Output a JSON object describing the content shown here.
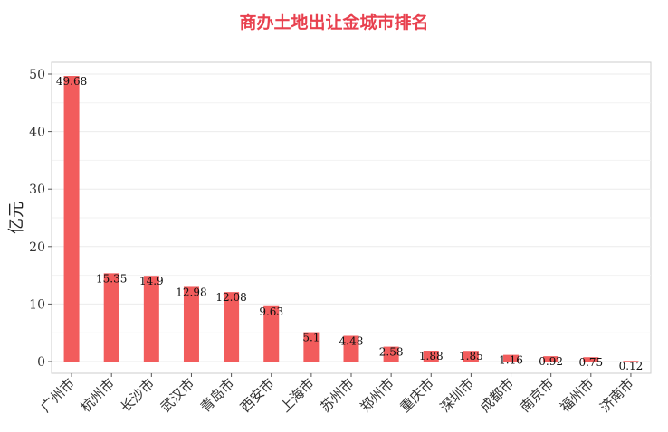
{
  "chart_data": {
    "type": "bar",
    "title": "商办土地出让金城市排名",
    "ylabel": "亿元",
    "xlabel": "",
    "ylim": [
      0,
      52
    ],
    "yticks": [
      0,
      10,
      20,
      30,
      40,
      50
    ],
    "grid": true,
    "bar_color": "#f25c5c",
    "categories": [
      "广州市",
      "杭州市",
      "长沙市",
      "武汉市",
      "青岛市",
      "西安市",
      "上海市",
      "苏州市",
      "郑州市",
      "重庆市",
      "深圳市",
      "成都市",
      "南京市",
      "福州市",
      "济南市"
    ],
    "values": [
      49.68,
      15.35,
      14.9,
      12.98,
      12.08,
      9.63,
      5.1,
      4.48,
      2.58,
      1.88,
      1.85,
      1.16,
      0.92,
      0.75,
      0.12
    ],
    "data_labels": [
      "49.68",
      "15.35",
      "14.9",
      "12.98",
      "12.08",
      "9.63",
      "5.1",
      "4.48",
      "2.58",
      "1.88",
      "1.85",
      "1.16",
      "0.92",
      "0.75",
      "0.12"
    ]
  }
}
